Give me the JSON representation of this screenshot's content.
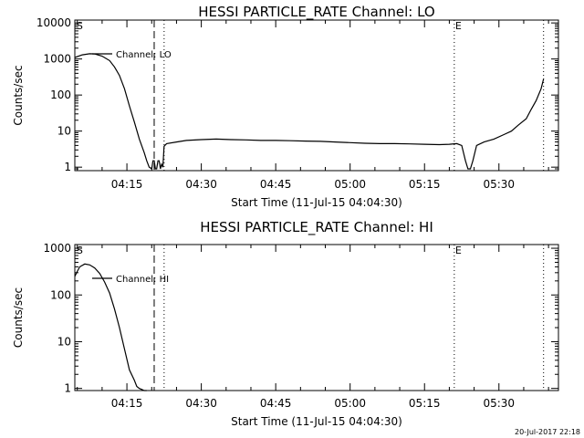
{
  "footer": {
    "stamp": "20-Jul-2017 22:18"
  },
  "chart_data": [
    {
      "type": "line",
      "title": "HESSI PARTICLE_RATE Channel: LO",
      "xlabel": "Start Time (11-Jul-15 04:04:30)",
      "ylabel": "Counts/sec",
      "yscale": "log",
      "xlim": [
        "04:04:30",
        "05:42:00"
      ],
      "ylim": [
        0.8,
        12000
      ],
      "x_ticks": [
        "04:15",
        "04:30",
        "04:45",
        "05:00",
        "05:15",
        "05:30"
      ],
      "y_ticks": [
        "1",
        "10",
        "100",
        "1000",
        "10000"
      ],
      "y_tick_values": [
        1,
        10,
        100,
        1000,
        10000
      ],
      "legend": {
        "position": "top-left",
        "entries": [
          "Channel: LO"
        ]
      },
      "markers": [
        {
          "label": "S",
          "time": "04:04:40",
          "style": "none"
        },
        {
          "label": "",
          "time": "04:20:30",
          "style": "dashed"
        },
        {
          "label": "",
          "time": "04:22:30",
          "style": "dotted"
        },
        {
          "label": "E",
          "time": "05:21:00",
          "style": "dotted"
        },
        {
          "label": "",
          "time": "05:39:00",
          "style": "dotted"
        }
      ],
      "series": [
        {
          "name": "Channel: LO",
          "x": [
            "04:04:30",
            "04:06:00",
            "04:07:30",
            "04:08:30",
            "04:10:00",
            "04:11:30",
            "04:12:30",
            "04:13:30",
            "04:14:30",
            "04:15:30",
            "04:16:30",
            "04:17:30",
            "04:18:30",
            "04:19:00",
            "04:19:30",
            "04:20:00",
            "04:20:15",
            "04:20:30",
            "04:20:45",
            "04:21:00",
            "04:21:15",
            "04:21:30",
            "04:21:45",
            "04:22:00",
            "04:22:15",
            "04:22:30",
            "04:23:00",
            "04:25:00",
            "04:27:00",
            "04:30:00",
            "04:33:00",
            "04:36:00",
            "04:39:00",
            "04:42:00",
            "04:45:00",
            "04:48:00",
            "04:51:00",
            "04:54:00",
            "04:57:00",
            "05:00:00",
            "05:03:00",
            "05:06:00",
            "05:09:00",
            "05:12:00",
            "05:15:00",
            "05:18:00",
            "05:20:00",
            "05:21:30",
            "05:22:30",
            "05:23:15",
            "05:23:45",
            "05:24:15",
            "05:24:45",
            "05:25:30",
            "05:27:00",
            "05:29:00",
            "05:31:00",
            "05:32:30",
            "05:34:00",
            "05:35:30",
            "05:36:30",
            "05:37:30",
            "05:38:30",
            "05:39:00"
          ],
          "values": [
            1100,
            1300,
            1400,
            1380,
            1200,
            900,
            600,
            350,
            150,
            50,
            18,
            6,
            2.5,
            1.5,
            1,
            0.9,
            1.5,
            1.5,
            0.9,
            0.9,
            1.5,
            1.5,
            0.9,
            1.2,
            1,
            3.8,
            4.5,
            5,
            5.5,
            5.8,
            6,
            5.8,
            5.7,
            5.5,
            5.5,
            5.4,
            5.3,
            5.2,
            5,
            4.8,
            4.6,
            4.5,
            4.5,
            4.4,
            4.3,
            4.2,
            4.3,
            4.5,
            4,
            1.5,
            0.9,
            0.9,
            1.5,
            4,
            5,
            6,
            8,
            10,
            15,
            22,
            40,
            70,
            150,
            280
          ]
        }
      ]
    },
    {
      "type": "line",
      "title": "HESSI PARTICLE_RATE Channel: HI",
      "xlabel": "Start Time (11-Jul-15 04:04:30)",
      "ylabel": "Counts/sec",
      "yscale": "log",
      "xlim": [
        "04:04:30",
        "05:42:00"
      ],
      "ylim": [
        0.9,
        1200
      ],
      "x_ticks": [
        "04:15",
        "04:30",
        "04:45",
        "05:00",
        "05:15",
        "05:30"
      ],
      "y_ticks": [
        "1",
        "10",
        "100",
        "1000"
      ],
      "y_tick_values": [
        1,
        10,
        100,
        1000
      ],
      "legend": {
        "position": "top-left",
        "entries": [
          "Channel: HI"
        ]
      },
      "markers": [
        {
          "label": "S",
          "time": "04:04:40",
          "style": "none"
        },
        {
          "label": "",
          "time": "04:20:30",
          "style": "dashed"
        },
        {
          "label": "",
          "time": "04:22:30",
          "style": "dotted"
        },
        {
          "label": "E",
          "time": "05:21:00",
          "style": "dotted"
        },
        {
          "label": "",
          "time": "05:39:00",
          "style": "dotted"
        }
      ],
      "series": [
        {
          "name": "Channel: HI",
          "x": [
            "04:04:30",
            "04:05:00",
            "04:05:30",
            "04:06:30",
            "04:07:30",
            "04:08:30",
            "04:09:30",
            "04:10:30",
            "04:11:30",
            "04:12:30",
            "04:13:30",
            "04:14:30",
            "04:15:30",
            "04:16:30",
            "04:17:00",
            "04:17:30",
            "04:18:00",
            "04:18:30",
            "04:19:00"
          ],
          "values": [
            250,
            320,
            400,
            460,
            440,
            380,
            290,
            190,
            110,
            50,
            20,
            7,
            2.5,
            1.5,
            1.1,
            1,
            0.95,
            0.9,
            0.85
          ]
        }
      ]
    }
  ]
}
